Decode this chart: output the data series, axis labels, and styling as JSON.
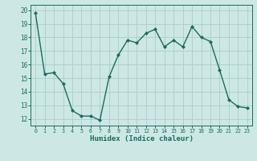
{
  "x": [
    0,
    1,
    2,
    3,
    4,
    5,
    6,
    7,
    8,
    9,
    10,
    11,
    12,
    13,
    14,
    15,
    16,
    17,
    18,
    19,
    20,
    21,
    22,
    23
  ],
  "y": [
    19.8,
    15.3,
    15.4,
    14.6,
    12.6,
    12.2,
    12.2,
    11.9,
    15.1,
    16.7,
    17.8,
    17.6,
    18.3,
    18.6,
    17.3,
    17.8,
    17.3,
    18.8,
    18.0,
    17.7,
    15.6,
    13.4,
    12.9,
    12.8
  ],
  "line_color": "#1a6b5e",
  "marker": "D",
  "marker_size": 2.0,
  "bg_color": "#cde8e4",
  "grid_color": "#aed0cc",
  "xlabel": "Humidex (Indice chaleur)",
  "xlabel_color": "#1a6b5e",
  "tick_color": "#1a6b5e",
  "ylim": [
    11.5,
    20.4
  ],
  "yticks": [
    12,
    13,
    14,
    15,
    16,
    17,
    18,
    19,
    20
  ],
  "xlim": [
    -0.5,
    23.5
  ],
  "xticks": [
    0,
    1,
    2,
    3,
    4,
    5,
    6,
    7,
    8,
    9,
    10,
    11,
    12,
    13,
    14,
    15,
    16,
    17,
    18,
    19,
    20,
    21,
    22,
    23
  ],
  "line_width": 1.0,
  "xlabel_fontsize": 6.5,
  "xtick_fontsize": 4.8,
  "ytick_fontsize": 5.5
}
